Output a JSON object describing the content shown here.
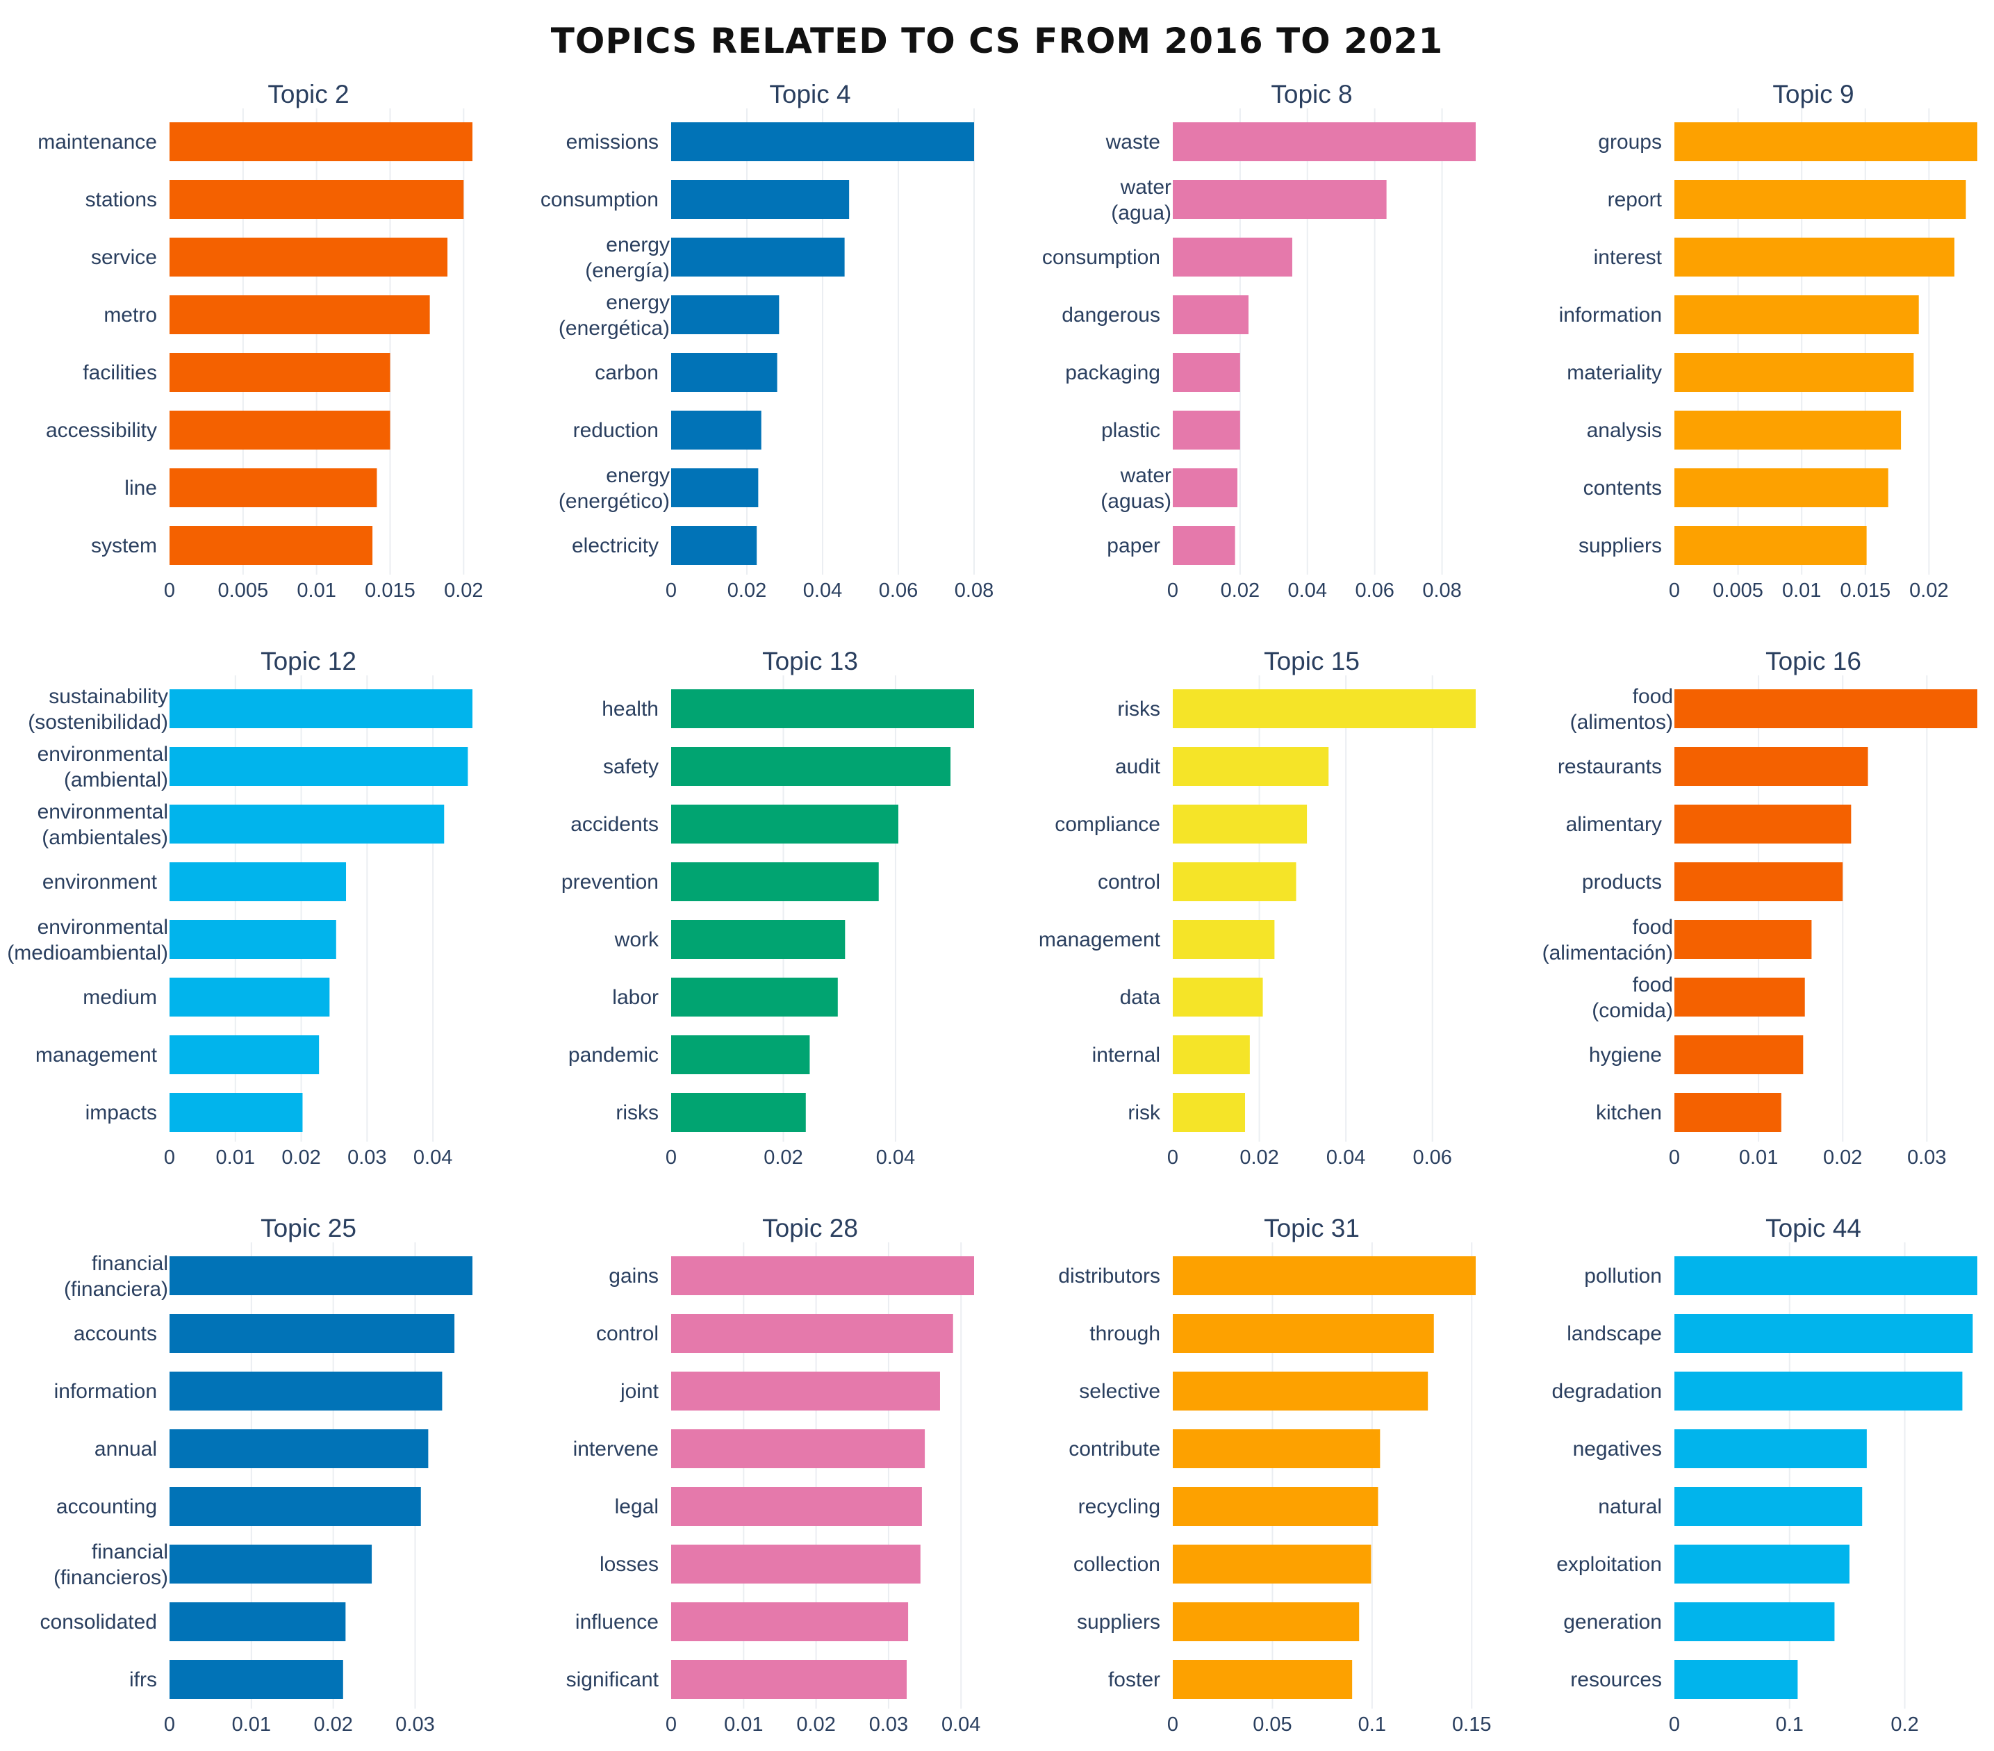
{
  "title": "TOPICS RELATED TO CS FROM 2016 TO 2021",
  "chart_data": [
    {
      "type": "bar",
      "orientation": "horizontal",
      "title": "Topic 2",
      "color": "#f46100",
      "categories": [
        [
          "maintenance"
        ],
        [
          "stations"
        ],
        [
          "service"
        ],
        [
          "metro"
        ],
        [
          "facilities"
        ],
        [
          "accessibility"
        ],
        [
          "line"
        ],
        [
          "system"
        ]
      ],
      "values": [
        0.0206,
        0.02,
        0.0189,
        0.0177,
        0.015,
        0.015,
        0.0141,
        0.0138
      ],
      "xlim": [
        0,
        0.0206
      ],
      "ticks": [
        0,
        0.005,
        0.01,
        0.015,
        0.02
      ],
      "tick_labels": [
        "0",
        "0.005",
        "0.01",
        "0.015",
        "0.02"
      ]
    },
    {
      "type": "bar",
      "orientation": "horizontal",
      "title": "Topic 4",
      "color": "#0173b7",
      "categories": [
        [
          "emissions"
        ],
        [
          "consumption"
        ],
        [
          "energy",
          "(energía)"
        ],
        [
          "energy",
          "(energética)"
        ],
        [
          "carbon"
        ],
        [
          "reduction"
        ],
        [
          "energy",
          "(energético)"
        ],
        [
          "electricity"
        ]
      ],
      "values": [
        0.08,
        0.047,
        0.0458,
        0.0285,
        0.028,
        0.0238,
        0.023,
        0.0226
      ],
      "xlim": [
        0,
        0.08
      ],
      "ticks": [
        0,
        0.02,
        0.04,
        0.06,
        0.08
      ],
      "tick_labels": [
        "0",
        "0.02",
        "0.04",
        "0.06",
        "0.08"
      ]
    },
    {
      "type": "bar",
      "orientation": "horizontal",
      "title": "Topic 8",
      "color": "#e579ab",
      "categories": [
        [
          "waste"
        ],
        [
          "water",
          "(agua)"
        ],
        [
          "consumption"
        ],
        [
          "dangerous"
        ],
        [
          "packaging"
        ],
        [
          "plastic"
        ],
        [
          "water",
          "(aguas)"
        ],
        [
          "paper"
        ]
      ],
      "values": [
        0.09,
        0.0635,
        0.0355,
        0.0225,
        0.02,
        0.02,
        0.0192,
        0.0185
      ],
      "xlim": [
        0,
        0.09
      ],
      "ticks": [
        0,
        0.02,
        0.04,
        0.06,
        0.08
      ],
      "tick_labels": [
        "0",
        "0.02",
        "0.04",
        "0.06",
        "0.08"
      ]
    },
    {
      "type": "bar",
      "orientation": "horizontal",
      "title": "Topic 9",
      "color": "#fda100",
      "categories": [
        [
          "groups"
        ],
        [
          "report"
        ],
        [
          "interest"
        ],
        [
          "information"
        ],
        [
          "materiality"
        ],
        [
          "analysis"
        ],
        [
          "contents"
        ],
        [
          "suppliers"
        ]
      ],
      "values": [
        0.0238,
        0.0229,
        0.022,
        0.0192,
        0.0188,
        0.0178,
        0.0168,
        0.0151
      ],
      "xlim": [
        0,
        0.0238
      ],
      "ticks": [
        0,
        0.005,
        0.01,
        0.015,
        0.02
      ],
      "tick_labels": [
        "0",
        "0.005",
        "0.01",
        "0.015",
        "0.02"
      ]
    },
    {
      "type": "bar",
      "orientation": "horizontal",
      "title": "Topic 12",
      "color": "#01b4ec",
      "categories": [
        [
          "sustainability",
          "(sostenibilidad)"
        ],
        [
          "environmental",
          "(ambiental)"
        ],
        [
          "environmental",
          "(ambientales)"
        ],
        [
          "environment"
        ],
        [
          "environmental",
          "(medioambiental)"
        ],
        [
          "medium"
        ],
        [
          "management"
        ],
        [
          "impacts"
        ]
      ],
      "values": [
        0.046,
        0.0453,
        0.0417,
        0.0268,
        0.0253,
        0.0243,
        0.0227,
        0.0202
      ],
      "xlim": [
        0,
        0.046
      ],
      "ticks": [
        0,
        0.01,
        0.02,
        0.03,
        0.04
      ],
      "tick_labels": [
        "0",
        "0.01",
        "0.02",
        "0.03",
        "0.04"
      ]
    },
    {
      "type": "bar",
      "orientation": "horizontal",
      "title": "Topic 13",
      "color": "#01a471",
      "categories": [
        [
          "health"
        ],
        [
          "safety"
        ],
        [
          "accidents"
        ],
        [
          "prevention"
        ],
        [
          "work"
        ],
        [
          "labor"
        ],
        [
          "pandemic"
        ],
        [
          "risks"
        ]
      ],
      "values": [
        0.054,
        0.0498,
        0.0405,
        0.037,
        0.031,
        0.0297,
        0.0247,
        0.024
      ],
      "xlim": [
        0,
        0.054
      ],
      "ticks": [
        0,
        0.02,
        0.04
      ],
      "tick_labels": [
        "0",
        "0.02",
        "0.04"
      ]
    },
    {
      "type": "bar",
      "orientation": "horizontal",
      "title": "Topic 15",
      "color": "#f5e428",
      "categories": [
        [
          "risks"
        ],
        [
          "audit"
        ],
        [
          "compliance"
        ],
        [
          "control"
        ],
        [
          "management"
        ],
        [
          "data"
        ],
        [
          "internal"
        ],
        [
          "risk"
        ]
      ],
      "values": [
        0.07,
        0.036,
        0.031,
        0.0285,
        0.0235,
        0.0208,
        0.0178,
        0.0167
      ],
      "xlim": [
        0,
        0.07
      ],
      "ticks": [
        0,
        0.02,
        0.04,
        0.06
      ],
      "tick_labels": [
        "0",
        "0.02",
        "0.04",
        "0.06"
      ]
    },
    {
      "type": "bar",
      "orientation": "horizontal",
      "title": "Topic 16",
      "color": "#f46100",
      "categories": [
        [
          "food",
          "(alimentos)"
        ],
        [
          "restaurants"
        ],
        [
          "alimentary"
        ],
        [
          "products"
        ],
        [
          "food",
          "(alimentación)"
        ],
        [
          "food",
          "(comida)"
        ],
        [
          "hygiene"
        ],
        [
          "kitchen"
        ]
      ],
      "values": [
        0.036,
        0.023,
        0.021,
        0.02,
        0.0163,
        0.0155,
        0.0153,
        0.0127
      ],
      "xlim": [
        0,
        0.036
      ],
      "ticks": [
        0,
        0.01,
        0.02,
        0.03
      ],
      "tick_labels": [
        "0",
        "0.01",
        "0.02",
        "0.03"
      ]
    },
    {
      "type": "bar",
      "orientation": "horizontal",
      "title": "Topic 25",
      "color": "#0173b7",
      "categories": [
        [
          "financial",
          "(financiera)"
        ],
        [
          "accounts"
        ],
        [
          "information"
        ],
        [
          "annual"
        ],
        [
          "accounting"
        ],
        [
          "financial",
          "(financieros)"
        ],
        [
          "consolidated"
        ],
        [
          "ifrs"
        ]
      ],
      "values": [
        0.037,
        0.0348,
        0.0333,
        0.0316,
        0.0307,
        0.0247,
        0.0215,
        0.0212
      ],
      "xlim": [
        0,
        0.037
      ],
      "ticks": [
        0,
        0.01,
        0.02,
        0.03
      ],
      "tick_labels": [
        "0",
        "0.01",
        "0.02",
        "0.03"
      ]
    },
    {
      "type": "bar",
      "orientation": "horizontal",
      "title": "Topic 28",
      "color": "#e579ab",
      "categories": [
        [
          "gains"
        ],
        [
          "control"
        ],
        [
          "joint"
        ],
        [
          "intervene"
        ],
        [
          "legal"
        ],
        [
          "losses"
        ],
        [
          "influence"
        ],
        [
          "significant"
        ]
      ],
      "values": [
        0.0418,
        0.0389,
        0.0371,
        0.035,
        0.0346,
        0.0344,
        0.0327,
        0.0325
      ],
      "xlim": [
        0,
        0.0418
      ],
      "ticks": [
        0,
        0.01,
        0.02,
        0.03,
        0.04
      ],
      "tick_labels": [
        "0",
        "0.01",
        "0.02",
        "0.03",
        "0.04"
      ]
    },
    {
      "type": "bar",
      "orientation": "horizontal",
      "title": "Topic 31",
      "color": "#fda100",
      "categories": [
        [
          "distributors"
        ],
        [
          "through"
        ],
        [
          "selective"
        ],
        [
          "contribute"
        ],
        [
          "recycling"
        ],
        [
          "collection"
        ],
        [
          "suppliers"
        ],
        [
          "foster"
        ]
      ],
      "values": [
        0.152,
        0.131,
        0.128,
        0.104,
        0.103,
        0.0995,
        0.0935,
        0.09
      ],
      "xlim": [
        0,
        0.152
      ],
      "ticks": [
        0,
        0.05,
        0.1,
        0.15
      ],
      "tick_labels": [
        "0",
        "0.05",
        "0.1",
        "0.15"
      ]
    },
    {
      "type": "bar",
      "orientation": "horizontal",
      "title": "Topic 44",
      "color": "#01b4ec",
      "categories": [
        [
          "pollution"
        ],
        [
          "landscape"
        ],
        [
          "degradation"
        ],
        [
          "negatives"
        ],
        [
          "natural"
        ],
        [
          "exploitation"
        ],
        [
          "generation"
        ],
        [
          "resources"
        ]
      ],
      "values": [
        0.263,
        0.259,
        0.25,
        0.167,
        0.163,
        0.152,
        0.139,
        0.107
      ],
      "xlim": [
        0,
        0.263
      ],
      "ticks": [
        0,
        0.1,
        0.2
      ],
      "tick_labels": [
        "0",
        "0.1",
        "0.2"
      ]
    }
  ]
}
